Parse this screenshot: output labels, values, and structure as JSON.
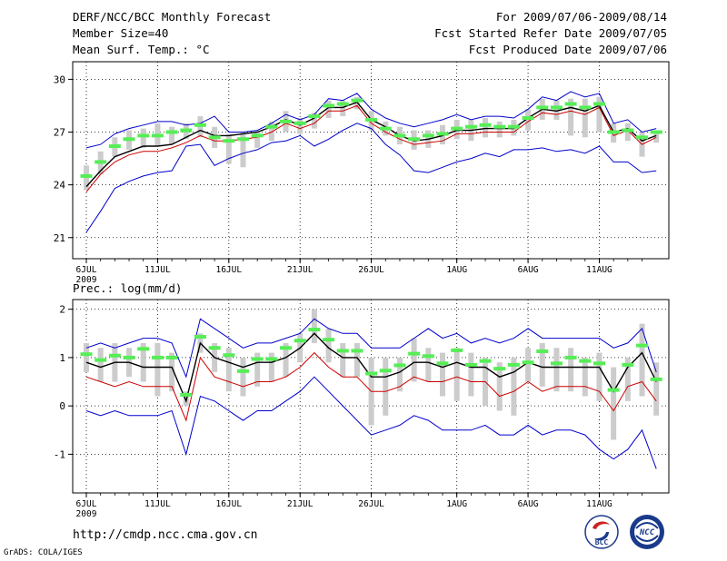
{
  "header": {
    "title": "DERF/NCC/BCC Monthly Forecast",
    "member_size": "Member Size=40",
    "variable": "Mean Surf. Temp.: °C",
    "period": "For 2009/07/06-2009/08/14",
    "started": "Fcst Started Refer Date 2009/07/05",
    "produced": "Fcst Produced Date 2009/07/06"
  },
  "footer": {
    "url": "http://cmdp.ncc.cma.gov.cn",
    "grads": "GrADS: COLA/IGES",
    "logo_left": "BCC",
    "logo_right": "NCC"
  },
  "colors": {
    "envelope": "#0000cc",
    "member_mean": "#cc0000",
    "ensemble_line": "#000000",
    "spread_bar": "#cccccc",
    "marker": "#55ee55",
    "grid": "#000000"
  },
  "chart_data": [
    {
      "type": "line",
      "title": "Mean Surf. Temp.: °C",
      "x_start": "2009-07-06",
      "days": 39,
      "x_ticks": [
        {
          "day": 0,
          "label": "6JUL",
          "sublabel": "2009"
        },
        {
          "day": 5,
          "label": "11JUL"
        },
        {
          "day": 10,
          "label": "16JUL"
        },
        {
          "day": 15,
          "label": "21JUL"
        },
        {
          "day": 20,
          "label": "26JUL"
        },
        {
          "day": 26,
          "label": "1AUG"
        },
        {
          "day": 31,
          "label": "6AUG"
        },
        {
          "day": 36,
          "label": "11AUG"
        }
      ],
      "ylim": [
        19.8,
        31.0
      ],
      "y_ticks": [
        21,
        24,
        27,
        30
      ],
      "series": [
        {
          "name": "max",
          "values": [
            26.1,
            26.3,
            26.9,
            27.2,
            27.4,
            27.6,
            27.6,
            27.4,
            27.5,
            27.9,
            27.0,
            27.0,
            27.1,
            27.5,
            28.0,
            27.7,
            28.0,
            28.9,
            28.8,
            29.2,
            28.3,
            27.8,
            27.5,
            27.3,
            27.5,
            27.7,
            28.0,
            27.7,
            27.9,
            27.9,
            27.8,
            28.3,
            29.0,
            28.8,
            29.3,
            29.0,
            29.2,
            27.5,
            27.7,
            27.0,
            27.2
          ]
        },
        {
          "name": "min",
          "values": [
            21.3,
            22.5,
            23.8,
            24.2,
            24.5,
            24.7,
            24.8,
            26.2,
            26.3,
            25.1,
            25.5,
            25.8,
            26.0,
            26.4,
            26.5,
            26.8,
            26.2,
            26.6,
            27.1,
            27.5,
            27.2,
            26.3,
            25.7,
            24.8,
            24.7,
            25.0,
            25.3,
            25.5,
            25.8,
            25.6,
            26.0,
            26.0,
            26.1,
            25.9,
            26.0,
            25.8,
            26.2,
            25.3,
            25.3,
            24.7,
            24.8
          ]
        },
        {
          "name": "mean_red",
          "values": [
            23.6,
            24.6,
            25.3,
            25.7,
            25.9,
            25.9,
            26.1,
            26.4,
            26.8,
            26.5,
            26.5,
            26.6,
            26.7,
            27.0,
            27.5,
            27.2,
            27.5,
            28.2,
            28.2,
            28.5,
            27.5,
            27.0,
            26.6,
            26.3,
            26.4,
            26.5,
            26.9,
            26.9,
            27.0,
            27.0,
            27.0,
            27.6,
            28.1,
            28.0,
            28.2,
            28.0,
            28.4,
            26.8,
            27.1,
            26.3,
            26.7
          ]
        },
        {
          "name": "ensemble",
          "values": [
            23.9,
            24.8,
            25.6,
            25.9,
            26.2,
            26.2,
            26.3,
            26.7,
            27.1,
            26.8,
            26.8,
            26.9,
            27.0,
            27.3,
            27.7,
            27.4,
            27.8,
            28.4,
            28.4,
            28.7,
            27.7,
            27.3,
            26.8,
            26.5,
            26.6,
            26.8,
            27.1,
            27.1,
            27.2,
            27.2,
            27.2,
            27.8,
            28.3,
            28.2,
            28.4,
            28.2,
            28.5,
            27.0,
            27.2,
            26.5,
            26.8
          ]
        }
      ],
      "boxes": [
        {
          "low": 23.7,
          "high": 25.1,
          "marker": 24.5
        },
        {
          "low": 24.6,
          "high": 25.9,
          "marker": 25.3
        },
        {
          "low": 25.6,
          "high": 26.7,
          "marker": 26.2
        },
        {
          "low": 26.0,
          "high": 27.1,
          "marker": 26.6
        },
        {
          "low": 26.1,
          "high": 27.2,
          "marker": 26.8
        },
        {
          "low": 26.2,
          "high": 27.5,
          "marker": 26.8
        },
        {
          "low": 26.3,
          "high": 27.3,
          "marker": 27.0
        },
        {
          "low": 26.6,
          "high": 27.5,
          "marker": 27.1
        },
        {
          "low": 26.7,
          "high": 27.9,
          "marker": 27.4
        },
        {
          "low": 26.1,
          "high": 27.3,
          "marker": 26.7
        },
        {
          "low": 25.2,
          "high": 26.9,
          "marker": 26.5
        },
        {
          "low": 25.0,
          "high": 27.0,
          "marker": 26.6
        },
        {
          "low": 26.1,
          "high": 27.0,
          "marker": 26.8
        },
        {
          "low": 26.5,
          "high": 27.6,
          "marker": 27.3
        },
        {
          "low": 27.0,
          "high": 28.2,
          "marker": 27.6
        },
        {
          "low": 26.9,
          "high": 27.8,
          "marker": 27.5
        },
        {
          "low": 27.2,
          "high": 28.1,
          "marker": 27.9
        },
        {
          "low": 27.8,
          "high": 28.8,
          "marker": 28.5
        },
        {
          "low": 27.9,
          "high": 28.8,
          "marker": 28.6
        },
        {
          "low": 28.3,
          "high": 29.0,
          "marker": 28.8
        },
        {
          "low": 27.1,
          "high": 28.2,
          "marker": 27.7
        },
        {
          "low": 26.8,
          "high": 27.6,
          "marker": 27.2
        },
        {
          "low": 26.3,
          "high": 27.3,
          "marker": 26.8
        },
        {
          "low": 26.0,
          "high": 27.1,
          "marker": 26.6
        },
        {
          "low": 26.1,
          "high": 27.1,
          "marker": 26.8
        },
        {
          "low": 26.3,
          "high": 27.4,
          "marker": 26.9
        },
        {
          "low": 26.6,
          "high": 27.7,
          "marker": 27.2
        },
        {
          "low": 26.5,
          "high": 27.7,
          "marker": 27.3
        },
        {
          "low": 26.7,
          "high": 27.8,
          "marker": 27.4
        },
        {
          "low": 26.7,
          "high": 27.6,
          "marker": 27.3
        },
        {
          "low": 26.8,
          "high": 27.7,
          "marker": 27.3
        },
        {
          "low": 27.1,
          "high": 28.3,
          "marker": 27.8
        },
        {
          "low": 27.7,
          "high": 28.9,
          "marker": 28.4
        },
        {
          "low": 27.7,
          "high": 28.8,
          "marker": 28.4
        },
        {
          "low": 26.8,
          "high": 28.9,
          "marker": 28.6
        },
        {
          "low": 26.7,
          "high": 28.9,
          "marker": 28.4
        },
        {
          "low": 27.0,
          "high": 29.0,
          "marker": 28.6
        },
        {
          "low": 26.4,
          "high": 27.5,
          "marker": 27.0
        },
        {
          "low": 26.5,
          "high": 27.5,
          "marker": 27.1
        },
        {
          "low": 25.6,
          "high": 27.0,
          "marker": 26.7
        },
        {
          "low": 26.4,
          "high": 27.1,
          "marker": 27.0
        }
      ]
    },
    {
      "type": "line",
      "title": "Prec.: log(mm/d)",
      "x_start": "2009-07-06",
      "days": 39,
      "x_ticks": [
        {
          "day": 0,
          "label": "6JUL",
          "sublabel": "2009"
        },
        {
          "day": 5,
          "label": "11JUL"
        },
        {
          "day": 10,
          "label": "16JUL"
        },
        {
          "day": 15,
          "label": "21JUL"
        },
        {
          "day": 20,
          "label": "26JUL"
        },
        {
          "day": 26,
          "label": "1AUG"
        },
        {
          "day": 31,
          "label": "6AUG"
        },
        {
          "day": 36,
          "label": "11AUG"
        }
      ],
      "ylim": [
        -1.8,
        2.2
      ],
      "y_ticks": [
        -1,
        0,
        1,
        2
      ],
      "series": [
        {
          "name": "max",
          "values": [
            1.2,
            1.3,
            1.2,
            1.3,
            1.4,
            1.4,
            1.3,
            0.6,
            1.8,
            1.6,
            1.4,
            1.2,
            1.3,
            1.3,
            1.4,
            1.5,
            1.8,
            1.6,
            1.5,
            1.5,
            1.2,
            1.2,
            1.2,
            1.4,
            1.6,
            1.4,
            1.5,
            1.3,
            1.4,
            1.3,
            1.4,
            1.6,
            1.4,
            1.4,
            1.4,
            1.4,
            1.4,
            1.2,
            1.3,
            1.6,
            0.7
          ]
        },
        {
          "name": "min",
          "values": [
            -0.1,
            -0.2,
            -0.1,
            -0.2,
            -0.2,
            -0.2,
            -0.1,
            -1.0,
            0.2,
            0.1,
            -0.1,
            -0.3,
            -0.1,
            -0.1,
            0.1,
            0.3,
            0.6,
            0.3,
            0.0,
            -0.3,
            -0.6,
            -0.5,
            -0.4,
            -0.2,
            -0.3,
            -0.5,
            -0.5,
            -0.5,
            -0.4,
            -0.6,
            -0.6,
            -0.4,
            -0.6,
            -0.5,
            -0.5,
            -0.6,
            -0.9,
            -1.1,
            -0.9,
            -0.5,
            -1.3
          ]
        },
        {
          "name": "mean_red",
          "values": [
            0.6,
            0.5,
            0.4,
            0.5,
            0.4,
            0.4,
            0.4,
            -0.3,
            1.0,
            0.6,
            0.5,
            0.4,
            0.5,
            0.5,
            0.6,
            0.8,
            1.1,
            0.8,
            0.6,
            0.6,
            0.3,
            0.3,
            0.4,
            0.6,
            0.5,
            0.5,
            0.6,
            0.5,
            0.5,
            0.2,
            0.3,
            0.5,
            0.3,
            0.4,
            0.4,
            0.4,
            0.3,
            -0.1,
            0.4,
            0.5,
            0.1
          ]
        },
        {
          "name": "ensemble",
          "values": [
            0.9,
            0.8,
            0.9,
            0.9,
            0.8,
            0.8,
            0.8,
            0.1,
            1.3,
            1.0,
            0.9,
            0.8,
            0.9,
            0.9,
            1.0,
            1.2,
            1.5,
            1.2,
            1.0,
            1.0,
            0.6,
            0.6,
            0.7,
            0.9,
            0.9,
            0.8,
            0.9,
            0.8,
            0.8,
            0.6,
            0.7,
            0.9,
            0.8,
            0.8,
            0.8,
            0.8,
            0.8,
            0.3,
            0.8,
            1.1,
            0.5
          ]
        }
      ],
      "boxes": [
        {
          "low": 0.7,
          "high": 1.3,
          "marker": 1.07
        },
        {
          "low": 0.5,
          "high": 1.2,
          "marker": 0.95
        },
        {
          "low": 0.5,
          "high": 1.3,
          "marker": 1.04
        },
        {
          "low": 0.6,
          "high": 1.2,
          "marker": 1.0
        },
        {
          "low": 0.5,
          "high": 1.3,
          "marker": 1.18
        },
        {
          "low": 0.2,
          "high": 1.3,
          "marker": 1.0
        },
        {
          "low": 0.3,
          "high": 1.1,
          "marker": 1.0
        },
        {
          "low": 0.0,
          "high": 0.3,
          "marker": 0.23
        },
        {
          "low": 1.1,
          "high": 1.5,
          "marker": 1.43
        },
        {
          "low": 0.7,
          "high": 1.3,
          "marker": 1.2
        },
        {
          "low": 0.3,
          "high": 1.2,
          "marker": 1.05
        },
        {
          "low": 0.2,
          "high": 1.0,
          "marker": 0.72
        },
        {
          "low": 0.4,
          "high": 1.1,
          "marker": 0.97
        },
        {
          "low": 0.5,
          "high": 1.1,
          "marker": 0.97
        },
        {
          "low": 0.6,
          "high": 1.3,
          "marker": 1.2
        },
        {
          "low": 0.9,
          "high": 1.5,
          "marker": 1.35
        },
        {
          "low": 1.3,
          "high": 2.0,
          "marker": 1.58
        },
        {
          "low": 0.9,
          "high": 1.6,
          "marker": 1.37
        },
        {
          "low": 0.6,
          "high": 1.3,
          "marker": 1.14
        },
        {
          "low": 0.6,
          "high": 1.3,
          "marker": 1.14
        },
        {
          "low": -0.4,
          "high": 1.0,
          "marker": 0.67
        },
        {
          "low": -0.2,
          "high": 1.0,
          "marker": 0.73
        },
        {
          "low": 0.3,
          "high": 1.0,
          "marker": 0.84
        },
        {
          "low": 0.5,
          "high": 1.4,
          "marker": 1.08
        },
        {
          "low": 0.5,
          "high": 1.2,
          "marker": 1.03
        },
        {
          "low": 0.2,
          "high": 1.1,
          "marker": 0.88
        },
        {
          "low": 0.1,
          "high": 1.2,
          "marker": 1.15
        },
        {
          "low": 0.2,
          "high": 1.1,
          "marker": 0.85
        },
        {
          "low": 0.0,
          "high": 1.0,
          "marker": 0.93
        },
        {
          "low": -0.1,
          "high": 0.9,
          "marker": 0.77
        },
        {
          "low": -0.2,
          "high": 1.0,
          "marker": 0.85
        },
        {
          "low": 0.5,
          "high": 1.2,
          "marker": 0.9
        },
        {
          "low": 0.4,
          "high": 1.3,
          "marker": 1.13
        },
        {
          "low": 0.3,
          "high": 1.2,
          "marker": 0.88
        },
        {
          "low": 0.3,
          "high": 1.2,
          "marker": 1.0
        },
        {
          "low": 0.2,
          "high": 1.0,
          "marker": 0.93
        },
        {
          "low": 0.1,
          "high": 1.1,
          "marker": 0.88
        },
        {
          "low": -0.7,
          "high": 0.8,
          "marker": 0.33
        },
        {
          "low": 0.1,
          "high": 1.0,
          "marker": 0.85
        },
        {
          "low": 0.2,
          "high": 1.7,
          "marker": 1.25
        },
        {
          "low": -0.2,
          "high": 0.9,
          "marker": 0.55
        }
      ]
    }
  ]
}
